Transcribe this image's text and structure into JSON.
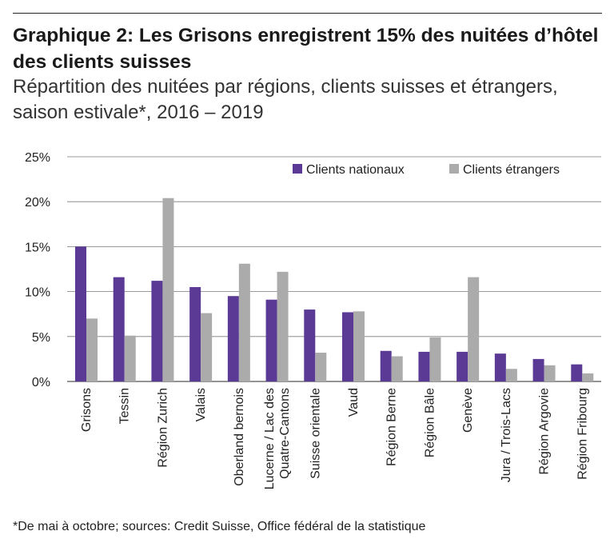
{
  "title": "Graphique 2: Les Grisons enregistrent 15% des nuitées d’hôtel des clients suisses",
  "subtitle": "Répartition des nuitées par régions, clients suisses et étrangers, saison estivale*, 2016 – 2019",
  "footnote": "*De mai à octobre; sources: Credit Suisse, Office fédéral de la statistique",
  "colors": {
    "nationaux": "#5b3a96",
    "etrangers": "#ababab"
  },
  "chart_data": {
    "type": "bar",
    "categories": [
      [
        "Grisons"
      ],
      [
        "Tessin"
      ],
      [
        "Région Zurich"
      ],
      [
        "Valais"
      ],
      [
        "Oberland bernois"
      ],
      [
        "Lucerne / Lac des",
        "Quatre-Cantons"
      ],
      [
        "Suisse orientale"
      ],
      [
        "Vaud"
      ],
      [
        "Région Berne"
      ],
      [
        "Région Bâle"
      ],
      [
        "Genève"
      ],
      [
        "Jura / Trois-Lacs"
      ],
      [
        "Région Argovie"
      ],
      [
        "Région Fribourg"
      ]
    ],
    "series": [
      {
        "name": "Clients nationaux",
        "values": [
          15.0,
          11.6,
          11.2,
          10.5,
          9.5,
          9.1,
          8.0,
          7.7,
          3.4,
          3.3,
          3.3,
          3.1,
          2.5,
          1.9
        ]
      },
      {
        "name": "Clients étrangers",
        "values": [
          7.0,
          5.1,
          20.4,
          7.6,
          13.1,
          12.2,
          3.2,
          7.8,
          2.8,
          4.9,
          11.6,
          1.4,
          1.8,
          0.9
        ]
      }
    ],
    "ylim": [
      0,
      25
    ],
    "yticks": [
      "0%",
      "5%",
      "10%",
      "15%",
      "20%",
      "25%"
    ],
    "ytick_values": [
      0,
      5,
      10,
      15,
      20,
      25
    ],
    "grid": true,
    "legend": "top-right"
  }
}
